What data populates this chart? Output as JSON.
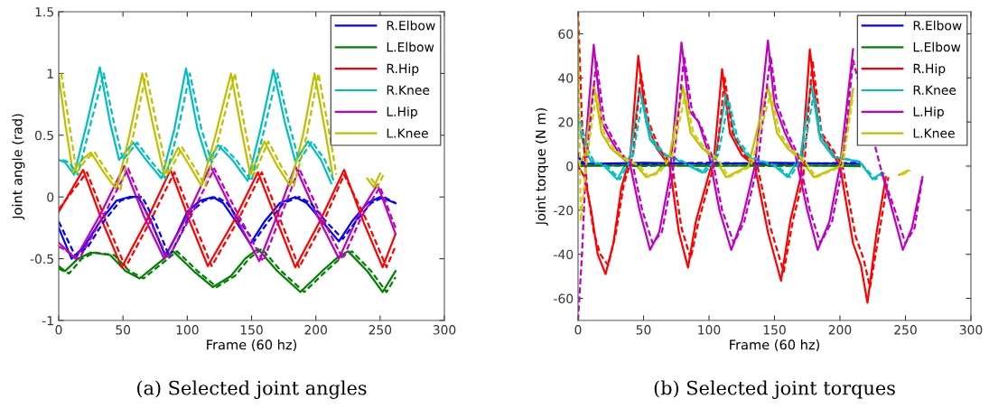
{
  "chart_data": [
    {
      "type": "line",
      "xlabel": "Frame (60 hz)",
      "ylabel": "Joint angle (rad)",
      "annotations": [
        "(a) Selected joint angles"
      ],
      "xlim": [
        0,
        300
      ],
      "xticks": [
        0,
        50,
        100,
        150,
        200,
        250,
        300
      ],
      "ylim": [
        -1,
        1.5
      ],
      "yticks": [
        -1,
        -0.5,
        0,
        0.5,
        1,
        1.5
      ],
      "grid": false,
      "legend": "top right",
      "series": [
        {
          "name": "R.Elbow",
          "color": "#0000ff",
          "line_style": "solid",
          "x": [
            0,
            10,
            20,
            32,
            45,
            55,
            62,
            72,
            83,
            92,
            100,
            110,
            120,
            128,
            138,
            149,
            160,
            172,
            184,
            193,
            205,
            218,
            228,
            240,
            250,
            262
          ],
          "values": [
            -0.25,
            -0.5,
            -0.4,
            -0.2,
            -0.03,
            0,
            0,
            -0.2,
            -0.48,
            -0.3,
            -0.12,
            -0.03,
            0,
            -0.05,
            -0.2,
            -0.38,
            -0.2,
            -0.05,
            0,
            -0.05,
            -0.2,
            -0.36,
            -0.2,
            -0.05,
            0,
            -0.05
          ]
        },
        {
          "name": "L.Elbow",
          "color": "#008000",
          "line_style": "solid",
          "x": [
            0,
            5,
            15,
            25,
            40,
            52,
            63,
            76,
            89,
            105,
            120,
            134,
            145,
            155,
            170,
            188,
            205,
            218,
            225,
            240,
            252,
            262
          ],
          "values": [
            -0.56,
            -0.6,
            -0.5,
            -0.45,
            -0.47,
            -0.6,
            -0.66,
            -0.55,
            -0.44,
            -0.6,
            -0.73,
            -0.64,
            -0.5,
            -0.42,
            -0.6,
            -0.77,
            -0.6,
            -0.48,
            -0.44,
            -0.6,
            -0.77,
            -0.6
          ]
        },
        {
          "name": "R.Hip",
          "color": "#ff0000",
          "line_style": "solid",
          "x": [
            0,
            19,
            34,
            49,
            68,
            87,
            102,
            116,
            136,
            155,
            170,
            184,
            203,
            222,
            237,
            252,
            262
          ],
          "values": [
            -0.12,
            0.22,
            -0.2,
            -0.57,
            -0.2,
            0.22,
            -0.2,
            -0.56,
            -0.2,
            0.2,
            -0.2,
            -0.57,
            -0.2,
            0.22,
            -0.2,
            -0.57,
            -0.3
          ]
        },
        {
          "name": "R.Knee",
          "color": "#00bfbf",
          "line_style": "solid",
          "x": [
            0,
            5,
            12,
            22,
            32,
            40,
            47,
            58,
            68,
            80,
            90,
            99,
            108,
            116,
            124,
            135,
            147,
            157,
            167,
            176,
            184,
            194,
            204,
            212
          ],
          "values": [
            0.3,
            0.28,
            0.18,
            0.6,
            1.05,
            0.6,
            0.3,
            0.44,
            0.3,
            0.15,
            0.55,
            1.04,
            0.55,
            0.28,
            0.42,
            0.3,
            0.13,
            0.55,
            1.03,
            0.6,
            0.29,
            0.45,
            0.3,
            0.11
          ]
        },
        {
          "name": "L.Hip",
          "color": "#bf00bf",
          "line_style": "solid",
          "x": [
            0,
            13,
            32,
            51,
            66,
            82,
            100,
            118,
            137,
            156,
            170,
            184,
            201,
            218,
            233,
            248,
            262
          ],
          "values": [
            -0.37,
            -0.5,
            -0.15,
            0.25,
            -0.15,
            -0.5,
            -0.15,
            0.25,
            -0.15,
            -0.52,
            -0.15,
            0.25,
            -0.15,
            -0.5,
            -0.15,
            0.1,
            -0.3
          ]
        },
        {
          "name": "L.Knee",
          "color": "#bfbf00",
          "line_style": "solid",
          "x": [
            0,
            5,
            11,
            18,
            25,
            35,
            45,
            55,
            65,
            73,
            82,
            93,
            102,
            111,
            122,
            134,
            142,
            149,
            160,
            170,
            180,
            190,
            199,
            207,
            213,
            225,
            240,
            245,
            250
          ],
          "values": [
            0.98,
            0.6,
            0.2,
            0.3,
            0.36,
            0.2,
            0.06,
            0.5,
            1.0,
            0.6,
            0.18,
            0.4,
            0.25,
            0.09,
            0.5,
            1.0,
            0.55,
            0.18,
            0.45,
            0.25,
            0.09,
            0.5,
            1.0,
            0.55,
            0.18,
            null,
            0.15,
            0.08,
            0.19
          ]
        },
        {
          "color": "#0000ff",
          "line_style": "dashed",
          "x": [
            0,
            13,
            23,
            35,
            48,
            58,
            65,
            75,
            86,
            95,
            103,
            113,
            123,
            131,
            141,
            152,
            163,
            175,
            187,
            196,
            208,
            221,
            231,
            243,
            253,
            262
          ],
          "values": [
            -0.2,
            -0.48,
            -0.4,
            -0.2,
            -0.03,
            0,
            0,
            -0.2,
            -0.48,
            -0.3,
            -0.12,
            -0.03,
            0,
            -0.05,
            -0.2,
            -0.36,
            -0.2,
            -0.05,
            0,
            -0.05,
            -0.2,
            -0.34,
            -0.2,
            -0.05,
            0,
            -0.05
          ]
        },
        {
          "color": "#008000",
          "line_style": "dashed",
          "x": [
            0,
            8,
            18,
            28,
            43,
            55,
            66,
            79,
            92,
            108,
            123,
            137,
            148,
            158,
            173,
            191,
            208,
            221,
            228,
            243,
            255,
            262
          ],
          "values": [
            -0.58,
            -0.62,
            -0.5,
            -0.45,
            -0.47,
            -0.6,
            -0.66,
            -0.55,
            -0.44,
            -0.6,
            -0.73,
            -0.64,
            -0.5,
            -0.42,
            -0.6,
            -0.77,
            -0.6,
            -0.48,
            -0.44,
            -0.6,
            -0.77,
            -0.65
          ]
        },
        {
          "color": "#ff0000",
          "line_style": "dashed",
          "x": [
            0,
            22,
            37,
            52,
            71,
            90,
            105,
            119,
            139,
            158,
            173,
            187,
            206,
            222,
            240,
            255,
            262
          ],
          "values": [
            -0.1,
            0.2,
            -0.2,
            -0.57,
            -0.2,
            0.2,
            -0.2,
            -0.56,
            -0.2,
            0.2,
            -0.2,
            -0.57,
            -0.2,
            0.18,
            -0.2,
            -0.57,
            -0.4
          ]
        },
        {
          "color": "#00bfbf",
          "line_style": "dashed",
          "x": [
            3,
            8,
            15,
            25,
            35,
            43,
            50,
            61,
            71,
            83,
            93,
            102,
            111,
            119,
            127,
            138,
            150,
            160,
            170,
            179,
            187,
            197,
            207,
            215
          ],
          "values": [
            0.3,
            0.28,
            0.18,
            0.6,
            1.0,
            0.6,
            0.3,
            0.44,
            0.3,
            0.15,
            0.55,
            1.0,
            0.55,
            0.28,
            0.42,
            0.3,
            0.13,
            0.55,
            1.0,
            0.6,
            0.29,
            0.45,
            0.3,
            0.11
          ]
        },
        {
          "color": "#bf00bf",
          "line_style": "dashed",
          "x": [
            0,
            16,
            35,
            54,
            69,
            85,
            103,
            121,
            140,
            159,
            173,
            187,
            204,
            221,
            236,
            250,
            262
          ],
          "values": [
            -0.4,
            -0.5,
            -0.15,
            0.23,
            -0.15,
            -0.5,
            -0.15,
            0.23,
            -0.15,
            -0.52,
            -0.15,
            0.23,
            -0.15,
            -0.5,
            -0.15,
            0.08,
            -0.25
          ]
        },
        {
          "color": "#bfbf00",
          "line_style": "dashed",
          "x": [
            2,
            8,
            14,
            21,
            28,
            38,
            48,
            58,
            68,
            76,
            85,
            96,
            105,
            114,
            125,
            137,
            145,
            152,
            163,
            173,
            183,
            193,
            202,
            210,
            216,
            228,
            243,
            248,
            253
          ],
          "values": [
            1.0,
            0.6,
            0.2,
            0.3,
            0.36,
            0.2,
            0.06,
            0.5,
            1.0,
            0.6,
            0.18,
            0.4,
            0.25,
            0.09,
            0.5,
            1.0,
            0.55,
            0.18,
            0.45,
            0.25,
            0.09,
            0.5,
            1.0,
            0.55,
            0.18,
            null,
            0.15,
            0.08,
            0.19
          ]
        }
      ]
    },
    {
      "type": "line",
      "xlabel": "Frame (60 hz)",
      "ylabel": "Joint torque (N m)",
      "annotations": [
        "(b) Selected joint torques"
      ],
      "xlim": [
        0,
        300
      ],
      "xticks": [
        0,
        50,
        100,
        150,
        200,
        250,
        300
      ],
      "ylim": [
        -70,
        70
      ],
      "yticks": [
        -60,
        -40,
        -20,
        0,
        20,
        40,
        60
      ],
      "grid": false,
      "legend": "top right",
      "series": [
        {
          "name": "R.Elbow",
          "color": "#0000ff",
          "line_style": "solid",
          "x": [
            0,
            5,
            50,
            100,
            150,
            215
          ],
          "values": [
            4,
            1,
            1.5,
            1,
            1.5,
            1
          ]
        },
        {
          "name": "L.Elbow",
          "color": "#008000",
          "line_style": "solid",
          "x": [
            0,
            50,
            100,
            150,
            215
          ],
          "values": [
            0,
            0.5,
            0,
            0.5,
            0
          ]
        },
        {
          "name": "R.Hip",
          "color": "#ff0000",
          "line_style": "solid",
          "x": [
            0,
            5,
            10,
            15,
            21,
            27,
            33,
            40,
            46,
            52,
            60,
            70,
            77,
            84,
            90,
            97,
            104,
            110,
            116,
            125,
            135,
            145,
            155,
            162,
            170,
            177,
            184,
            192,
            200,
            210,
            216,
            221,
            228,
            235
          ],
          "values": [
            0,
            -5,
            -20,
            -40,
            -49,
            -35,
            -10,
            5,
            50,
            20,
            8,
            0,
            -30,
            -46,
            -25,
            -10,
            5,
            44,
            15,
            5,
            0,
            -30,
            -52,
            -25,
            -5,
            53,
            15,
            8,
            0,
            -35,
            -45,
            -62,
            -30,
            -5
          ]
        },
        {
          "name": "R.Knee",
          "color": "#00bfbf",
          "line_style": "solid",
          "x": [
            0,
            5,
            10,
            20,
            30,
            40,
            47,
            55,
            65,
            75,
            85,
            95,
            105,
            113,
            120,
            130,
            140,
            150,
            160,
            170,
            178,
            185,
            195,
            205,
            215,
            225,
            232
          ],
          "values": [
            20,
            8,
            2,
            0,
            -6,
            5,
            35,
            12,
            5,
            3,
            0,
            -3,
            5,
            33,
            12,
            4,
            2,
            0,
            -5,
            5,
            37,
            12,
            4,
            3,
            2,
            -6,
            -3
          ]
        },
        {
          "name": "L.Hip",
          "color": "#bf00bf",
          "line_style": "solid",
          "x": [
            0,
            5,
            12,
            18,
            25,
            32,
            40,
            47,
            55,
            62,
            70,
            79,
            85,
            92,
            100,
            108,
            117,
            125,
            135,
            145,
            150,
            158,
            166,
            175,
            183,
            192,
            200,
            210,
            216,
            224,
            232,
            240,
            248,
            255,
            263
          ],
          "values": [
            0,
            5,
            55,
            20,
            12,
            5,
            0,
            -20,
            -38,
            -30,
            -5,
            56,
            25,
            20,
            5,
            -20,
            -38,
            -25,
            0,
            57,
            28,
            15,
            5,
            -20,
            -38,
            -25,
            0,
            53,
            null,
            null,
            -3,
            -20,
            -38,
            -28,
            -5
          ]
        },
        {
          "name": "L.Knee",
          "color": "#bfbf00",
          "line_style": "solid",
          "x": [
            0,
            5,
            12,
            18,
            25,
            35,
            45,
            52,
            60,
            70,
            80,
            86,
            95,
            105,
            113,
            120,
            130,
            145,
            152,
            160,
            170,
            180,
            188,
            200,
            210,
            215,
            230,
            245,
            252
          ],
          "values": [
            0,
            5,
            37,
            15,
            8,
            3,
            0,
            -5,
            -3,
            5,
            36,
            15,
            8,
            3,
            -5,
            -3,
            0,
            36,
            15,
            8,
            3,
            -5,
            -3,
            0,
            35,
            null,
            null,
            -4,
            -2
          ]
        },
        {
          "color": "#0000ff",
          "line_style": "dashed",
          "x": [
            0,
            3,
            50,
            100,
            150,
            215
          ],
          "values": [
            6,
            1,
            1,
            1.5,
            1,
            1.5
          ]
        },
        {
          "color": "#008000",
          "line_style": "dashed",
          "x": [
            0,
            50,
            100,
            150,
            215
          ],
          "values": [
            0.5,
            0,
            0.5,
            0,
            0.5
          ]
        },
        {
          "color": "#ff0000",
          "line_style": "dashed",
          "x": [
            0,
            3,
            7,
            12,
            17,
            23,
            29,
            35,
            42,
            48,
            54,
            62,
            72,
            79,
            86,
            92,
            99,
            106,
            112,
            118,
            127,
            137,
            147,
            157,
            164,
            172,
            179,
            186,
            194,
            202,
            212,
            218,
            223,
            230,
            237
          ],
          "values": [
            70,
            20,
            -10,
            -30,
            -40,
            -45,
            -30,
            -8,
            5,
            42,
            20,
            8,
            0,
            -28,
            -42,
            -25,
            -10,
            5,
            40,
            15,
            5,
            0,
            -28,
            -48,
            -25,
            -5,
            48,
            15,
            8,
            0,
            -32,
            -42,
            -55,
            -30,
            -5
          ]
        },
        {
          "color": "#00bfbf",
          "line_style": "dashed",
          "x": [
            0,
            2,
            7,
            12,
            22,
            32,
            42,
            49,
            57,
            67,
            77,
            87,
            97,
            107,
            115,
            122,
            132,
            142,
            152,
            162,
            172,
            180,
            187,
            197,
            207,
            215,
            227,
            234
          ],
          "values": [
            24,
            20,
            8,
            2,
            0,
            -6,
            5,
            30,
            12,
            5,
            3,
            0,
            -3,
            5,
            30,
            12,
            4,
            2,
            0,
            -5,
            5,
            33,
            12,
            4,
            3,
            2,
            -6,
            -3
          ]
        },
        {
          "color": "#bf00bf",
          "line_style": "dashed",
          "x": [
            0,
            3,
            6,
            14,
            20,
            27,
            34,
            42,
            49,
            57,
            64,
            72,
            81,
            87,
            94,
            102,
            110,
            119,
            127,
            137,
            147,
            152,
            160,
            168,
            177,
            185,
            194,
            202,
            210,
            232,
            242,
            250,
            257,
            263
          ],
          "values": [
            -70,
            -40,
            0,
            48,
            20,
            12,
            5,
            0,
            -20,
            -35,
            -30,
            -5,
            50,
            25,
            18,
            5,
            -20,
            -35,
            -25,
            0,
            50,
            28,
            15,
            5,
            -20,
            -35,
            -25,
            0,
            48,
            -3,
            -20,
            -35,
            -28,
            -5
          ]
        },
        {
          "color": "#d0d000",
          "line_style": "dashed",
          "x": [
            0,
            2,
            7,
            14,
            20,
            27,
            37,
            47,
            54,
            62,
            72,
            82,
            88,
            97,
            107,
            115,
            122,
            132,
            147,
            154,
            162,
            172,
            182,
            190,
            202,
            210,
            216,
            230,
            247,
            254
          ],
          "values": [
            68,
            -25,
            5,
            33,
            15,
            8,
            3,
            0,
            -5,
            -3,
            5,
            33,
            15,
            8,
            3,
            -5,
            -3,
            0,
            33,
            15,
            8,
            3,
            -5,
            -3,
            0,
            32,
            null,
            null,
            -4,
            -2
          ]
        }
      ]
    }
  ]
}
